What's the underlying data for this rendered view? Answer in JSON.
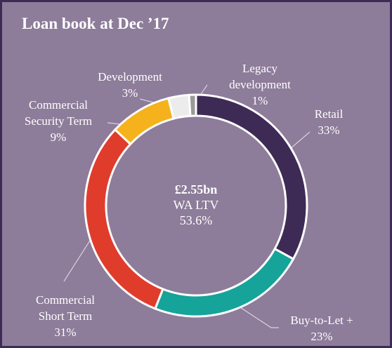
{
  "chart_data": {
    "type": "donut",
    "title": "Loan book at Dec ’17",
    "center_title": "£2.55bn",
    "center_lines": [
      "WA LTV",
      "53.6%"
    ],
    "categories": [
      "Retail",
      "Buy-to-Let +",
      "Commercial Short Term",
      "Commercial Security Term",
      "Development",
      "Legacy development"
    ],
    "values": [
      33,
      23,
      31,
      9,
      3,
      1
    ],
    "value_labels": [
      "33%",
      "23%",
      "31%",
      "9%",
      "3%",
      "1%"
    ],
    "colors": [
      "#3d2b56",
      "#16a39a",
      "#e03c2c",
      "#f5b21c",
      "#ececec",
      "#9a9a9a"
    ]
  }
}
